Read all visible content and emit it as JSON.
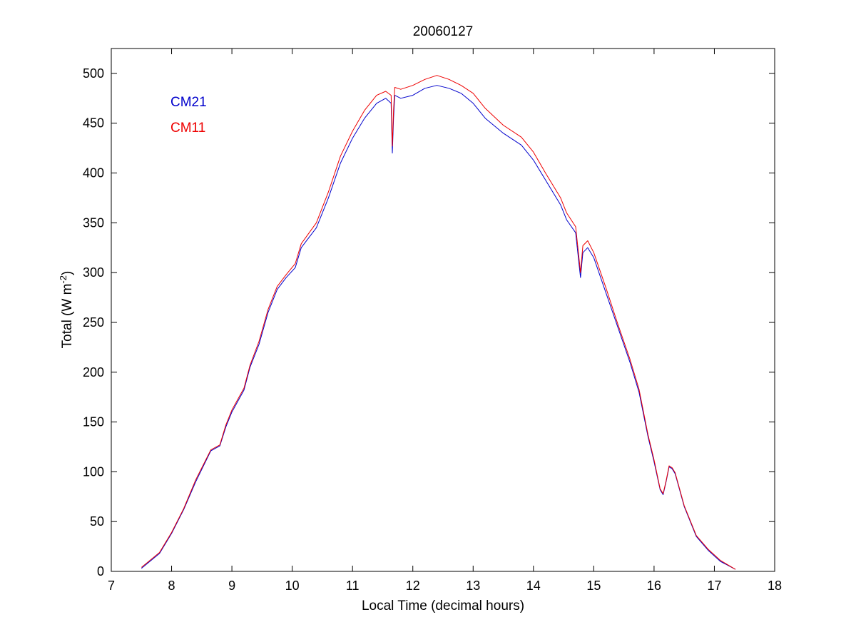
{
  "chart_data": {
    "type": "line",
    "title": "20060127",
    "xlabel": "Local Time (decimal hours)",
    "ylabel_main": "Total (W m",
    "ylabel_sup": "-2",
    "ylabel_close": ")",
    "xlim": [
      7,
      18
    ],
    "ylim": [
      0,
      525
    ],
    "xticks": [
      7,
      8,
      9,
      10,
      11,
      12,
      13,
      14,
      15,
      16,
      17,
      18
    ],
    "yticks": [
      0,
      50,
      100,
      150,
      200,
      250,
      300,
      350,
      400,
      450,
      500
    ],
    "grid": false,
    "legend_position": "top-left",
    "series": [
      {
        "name": "CM21",
        "color": "#0000cc",
        "x": [
          7.5,
          7.8,
          8.0,
          8.2,
          8.4,
          8.65,
          8.8,
          8.9,
          9.0,
          9.2,
          9.3,
          9.45,
          9.6,
          9.75,
          9.9,
          10.05,
          10.15,
          10.4,
          10.6,
          10.8,
          11.0,
          11.2,
          11.4,
          11.55,
          11.64,
          11.66,
          11.68,
          11.7,
          11.8,
          12.0,
          12.2,
          12.4,
          12.6,
          12.8,
          13.0,
          13.2,
          13.5,
          13.8,
          14.0,
          14.2,
          14.45,
          14.55,
          14.7,
          14.75,
          14.78,
          14.82,
          14.9,
          15.0,
          15.2,
          15.4,
          15.6,
          15.75,
          15.9,
          16.0,
          16.1,
          16.15,
          16.2,
          16.25,
          16.3,
          16.35,
          16.5,
          16.7,
          16.9,
          17.1,
          17.35
        ],
        "y": [
          3,
          18,
          38,
          62,
          90,
          121,
          126,
          145,
          160,
          182,
          205,
          228,
          260,
          283,
          295,
          305,
          325,
          345,
          375,
          410,
          435,
          455,
          470,
          475,
          470,
          420,
          455,
          478,
          475,
          478,
          485,
          488,
          485,
          480,
          470,
          455,
          440,
          428,
          413,
          393,
          368,
          353,
          340,
          312,
          295,
          320,
          325,
          315,
          280,
          245,
          210,
          180,
          135,
          110,
          82,
          77,
          90,
          105,
          103,
          98,
          65,
          35,
          21,
          10,
          2
        ]
      },
      {
        "name": "CM11",
        "color": "#ee0000",
        "x": [
          7.5,
          7.8,
          8.0,
          8.2,
          8.4,
          8.65,
          8.8,
          8.9,
          9.0,
          9.2,
          9.3,
          9.45,
          9.6,
          9.75,
          9.9,
          10.05,
          10.15,
          10.4,
          10.6,
          10.8,
          11.0,
          11.2,
          11.4,
          11.55,
          11.64,
          11.66,
          11.68,
          11.7,
          11.8,
          12.0,
          12.2,
          12.4,
          12.6,
          12.8,
          13.0,
          13.2,
          13.5,
          13.8,
          14.0,
          14.2,
          14.45,
          14.55,
          14.7,
          14.75,
          14.78,
          14.82,
          14.9,
          15.0,
          15.2,
          15.4,
          15.6,
          15.75,
          15.9,
          16.0,
          16.1,
          16.15,
          16.2,
          16.25,
          16.3,
          16.35,
          16.5,
          16.7,
          16.9,
          17.1,
          17.35
        ],
        "y": [
          4,
          19,
          39,
          63,
          92,
          122,
          127,
          147,
          162,
          184,
          207,
          231,
          263,
          286,
          298,
          309,
          329,
          350,
          381,
          417,
          442,
          463,
          478,
          482,
          478,
          427,
          463,
          486,
          484,
          488,
          494,
          498,
          494,
          488,
          480,
          465,
          448,
          436,
          421,
          400,
          375,
          360,
          346,
          318,
          300,
          327,
          332,
          320,
          285,
          248,
          213,
          183,
          137,
          112,
          83,
          78,
          91,
          106,
          104,
          99,
          66,
          36,
          22,
          11,
          2
        ]
      }
    ]
  }
}
